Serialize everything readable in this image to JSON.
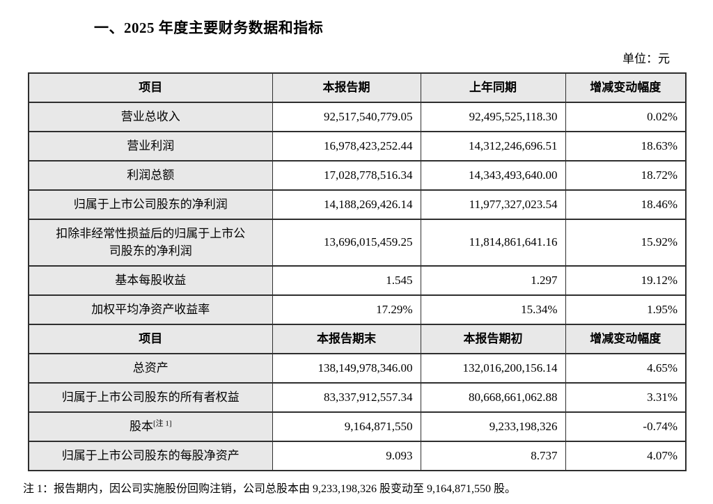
{
  "page": {
    "title": "一、2025 年度主要财务数据和指标",
    "unit_label": "单位：元",
    "footnote": "注 1：报告期内，因公司实施股份回购注销，公司总股本由 9,233,198,326 股变动至 9,164,871,550 股。"
  },
  "colors": {
    "cell_bg_gray": "#e8e8e8",
    "border_color": "#2e2e2e",
    "text_color": "#000000",
    "page_bg": "#ffffff"
  },
  "table": {
    "section1": {
      "headers": [
        "项目",
        "本报告期",
        "上年同期",
        "增减变动幅度"
      ],
      "rows": [
        {
          "item": "营业总收入",
          "current": "92,517,540,779.05",
          "prior": "92,495,525,118.30",
          "change": "0.02%"
        },
        {
          "item": "营业利润",
          "current": "16,978,423,252.44",
          "prior": "14,312,246,696.51",
          "change": "18.63%"
        },
        {
          "item": "利润总额",
          "current": "17,028,778,516.34",
          "prior": "14,343,493,640.00",
          "change": "18.72%"
        },
        {
          "item": "归属于上市公司股东的净利润",
          "current": "14,188,269,426.14",
          "prior": "11,977,327,023.54",
          "change": "18.46%"
        },
        {
          "item": "扣除非经常性损益后的归属于上市公司股东的净利润",
          "current": "13,696,015,459.25",
          "prior": "11,814,861,641.16",
          "change": "15.92%"
        },
        {
          "item": "基本每股收益",
          "current": "1.545",
          "prior": "1.297",
          "change": "19.12%"
        },
        {
          "item": "加权平均净资产收益率",
          "current": "17.29%",
          "prior": "15.34%",
          "change": "1.95%"
        }
      ]
    },
    "section2": {
      "headers": [
        "项目",
        "本报告期末",
        "本报告期初",
        "增减变动幅度"
      ],
      "rows": [
        {
          "item": "总资产",
          "current": "138,149,978,346.00",
          "prior": "132,016,200,156.14",
          "change": "4.65%"
        },
        {
          "item": "归属于上市公司股东的所有者权益",
          "current": "83,337,912,557.34",
          "prior": "80,668,661,062.88",
          "change": "3.31%"
        },
        {
          "item": "股本",
          "item_sup": "[注 1]",
          "current": "9,164,871,550",
          "prior": "9,233,198,326",
          "change": "-0.74%"
        },
        {
          "item": "归属于上市公司股东的每股净资产",
          "current": "9.093",
          "prior": "8.737",
          "change": "4.07%"
        }
      ]
    }
  }
}
